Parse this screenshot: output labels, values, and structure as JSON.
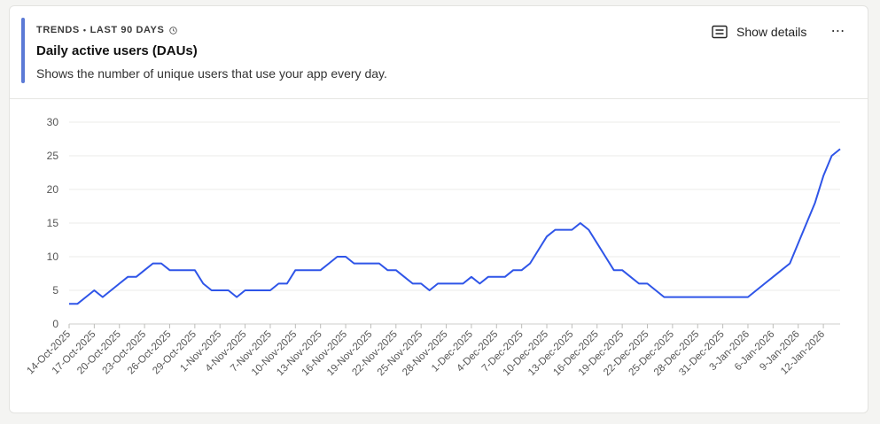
{
  "header": {
    "eyebrow_label": "TRENDS",
    "eyebrow_separator": "•",
    "eyebrow_period": "LAST 90 DAYS",
    "title": "Daily active users (DAUs)",
    "subtitle": "Shows the number of unique users that use your app every day.",
    "show_details_label": "Show details",
    "more_label": "⋯",
    "accent_color": "#5b7ad6"
  },
  "chart_data": {
    "type": "line",
    "title": "",
    "xlabel": "",
    "ylabel": "",
    "ylim": [
      0,
      30
    ],
    "yticks": [
      0,
      5,
      10,
      15,
      20,
      25,
      30
    ],
    "grid": true,
    "legend": "none",
    "line_color": "#2f55e8",
    "x_tick_labels": [
      "14-Oct-2025",
      "17-Oct-2025",
      "20-Oct-2025",
      "23-Oct-2025",
      "26-Oct-2025",
      "29-Oct-2025",
      "1-Nov-2025",
      "4-Nov-2025",
      "7-Nov-2025",
      "10-Nov-2025",
      "13-Nov-2025",
      "16-Nov-2025",
      "19-Nov-2025",
      "22-Nov-2025",
      "25-Nov-2025",
      "28-Nov-2025",
      "1-Dec-2025",
      "4-Dec-2025",
      "7-Dec-2025",
      "10-Dec-2025",
      "13-Dec-2025",
      "16-Dec-2025",
      "19-Dec-2025",
      "22-Dec-2025",
      "25-Dec-2025",
      "28-Dec-2025",
      "31-Dec-2025",
      "3-Jan-2026",
      "6-Jan-2026",
      "9-Jan-2026",
      "12-Jan-2026"
    ],
    "series": [
      {
        "values": [
          3,
          3,
          4,
          5,
          4,
          5,
          6,
          7,
          7,
          8,
          9,
          9,
          8,
          8,
          8,
          8,
          6,
          5,
          5,
          5,
          4,
          5,
          5,
          5,
          5,
          6,
          6,
          8,
          8,
          8,
          8,
          9,
          10,
          10,
          9,
          9,
          9,
          9,
          8,
          8,
          7,
          6,
          6,
          5,
          6,
          6,
          6,
          6,
          7,
          6,
          7,
          7,
          7,
          8,
          8,
          9,
          11,
          13,
          14,
          14,
          14,
          15,
          14,
          12,
          10,
          8,
          8,
          7,
          6,
          6,
          5,
          4,
          4,
          4,
          4,
          4,
          4,
          4,
          4,
          4,
          4,
          4,
          5,
          6,
          7,
          8,
          9,
          12,
          15,
          18,
          22,
          25,
          26
        ]
      }
    ]
  }
}
